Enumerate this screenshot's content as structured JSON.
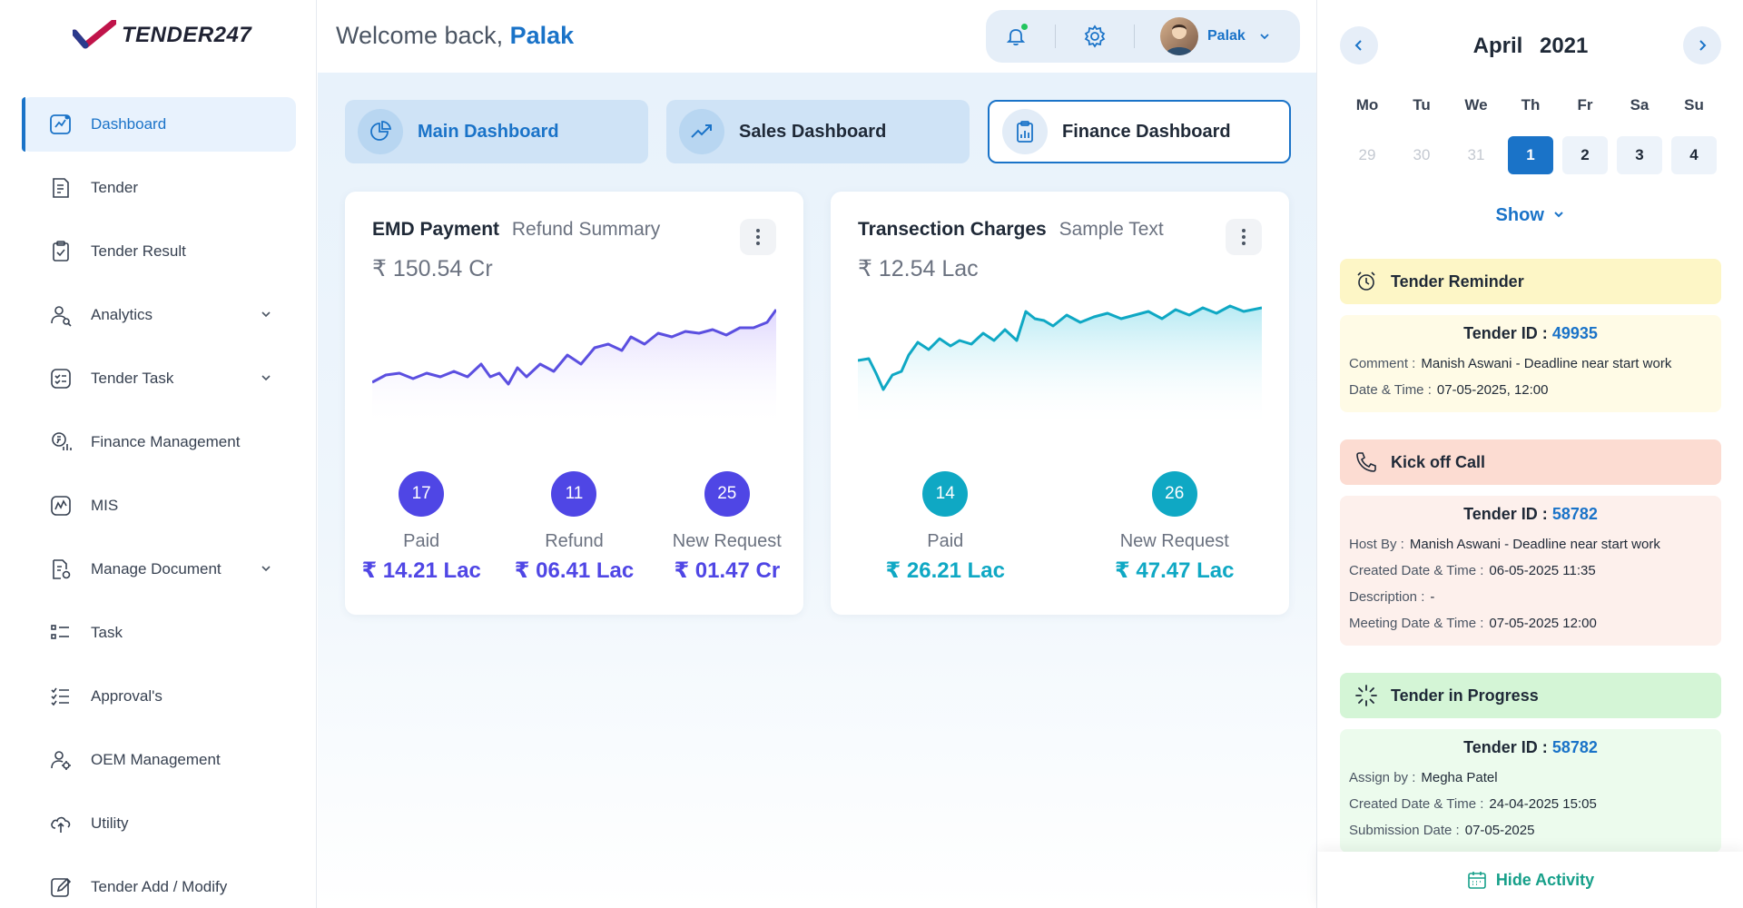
{
  "logo": {
    "text": "TENDER247"
  },
  "sidebar": {
    "items": [
      {
        "label": "Dashboard",
        "icon": "dashboard-icon",
        "active": true
      },
      {
        "label": "Tender",
        "icon": "tender-icon"
      },
      {
        "label": "Tender Result",
        "icon": "tender-result-icon"
      },
      {
        "label": "Analytics",
        "icon": "analytics-icon",
        "expandable": true
      },
      {
        "label": "Tender Task",
        "icon": "tender-task-icon",
        "expandable": true
      },
      {
        "label": "Finance Management",
        "icon": "finance-icon"
      },
      {
        "label": "MIS",
        "icon": "mis-icon"
      },
      {
        "label": "Manage Document",
        "icon": "document-icon",
        "expandable": true
      },
      {
        "label": "Task",
        "icon": "task-icon"
      },
      {
        "label": "Approval's",
        "icon": "approvals-icon"
      },
      {
        "label": "OEM Management",
        "icon": "oem-icon"
      },
      {
        "label": "Utility",
        "icon": "utility-icon"
      },
      {
        "label": "Tender Add / Modify",
        "icon": "edit-icon"
      }
    ]
  },
  "header": {
    "welcome": "Welcome back,",
    "user": "Palak",
    "profile_name": "Palak"
  },
  "tabs": [
    {
      "label": "Main Dashboard",
      "icon": "pie-chart-icon"
    },
    {
      "label": "Sales Dashboard",
      "icon": "trending-up-icon"
    },
    {
      "label": "Finance Dashboard",
      "icon": "clipboard-chart-icon",
      "active": true
    }
  ],
  "cards": [
    {
      "title": "EMD Payment",
      "subtitle": "Refund Summary",
      "amount": "₹ 150.54 Cr",
      "stats": [
        {
          "count": "17",
          "label": "Paid",
          "value": "₹ 14.21 Lac"
        },
        {
          "count": "11",
          "label": "Refund",
          "value": "₹ 06.41 Lac"
        },
        {
          "count": "25",
          "label": "New Request",
          "value": "₹ 01.47 Cr"
        }
      ],
      "color": "#4f46e5",
      "fill": "#ede9fe"
    },
    {
      "title": "Transection Charges",
      "subtitle": "Sample Text",
      "amount": "₹ 12.54 Lac",
      "stats": [
        {
          "count": "14",
          "label": "Paid",
          "value": "₹ 26.21 Lac"
        },
        {
          "count": "26",
          "label": "New Request",
          "value": "₹ 47.47 Lac"
        }
      ],
      "color": "#0fa8c4",
      "fill": "#c7eef5"
    }
  ],
  "calendar": {
    "month": "April",
    "year": "2021",
    "weekdays": [
      "Mo",
      "Tu",
      "We",
      "Th",
      "Fr",
      "Sa",
      "Su"
    ],
    "days": [
      {
        "d": "29",
        "muted": true
      },
      {
        "d": "30",
        "muted": true
      },
      {
        "d": "31",
        "muted": true
      },
      {
        "d": "1",
        "selected": true
      },
      {
        "d": "2"
      },
      {
        "d": "3"
      },
      {
        "d": "4"
      }
    ],
    "show_label": "Show"
  },
  "activities": [
    {
      "title": "Tender Reminder",
      "icon": "alarm-clock-icon",
      "head_color": "#fdf6c6",
      "body_color": "#fffbe6",
      "id_label": "Tender ID :",
      "id": "49935",
      "rows": [
        {
          "k": "Comment :",
          "v": "Manish Aswani - Deadline near start work"
        },
        {
          "k": "Date & Time :",
          "v": "07-05-2025, 12:00"
        }
      ]
    },
    {
      "title": "Kick off Call",
      "icon": "phone-icon",
      "head_color": "#fcdcd2",
      "body_color": "#fdf0ec",
      "id_label": "Tender ID :",
      "id": "58782",
      "rows": [
        {
          "k": "Host By :",
          "v": "Manish Aswani - Deadline near start work"
        },
        {
          "k": "Created Date & Time :",
          "v": "06-05-2025 11:35"
        },
        {
          "k": "Description :",
          "v": "-"
        },
        {
          "k": "Meeting Date & Time :",
          "v": "07-05-2025 12:00"
        }
      ]
    },
    {
      "title": "Tender in Progress",
      "icon": "loader-icon",
      "head_color": "#d4f5d6",
      "body_color": "#ecfbed",
      "id_label": "Tender ID :",
      "id": "58782",
      "rows": [
        {
          "k": "Assign by :",
          "v": "Megha Patel"
        },
        {
          "k": "Created Date & Time :",
          "v": "24-04-2025 15:05"
        },
        {
          "k": "Submission Date :",
          "v": "07-05-2025"
        }
      ]
    }
  ],
  "hide_activity": "Hide Activity"
}
